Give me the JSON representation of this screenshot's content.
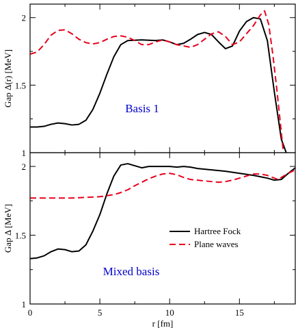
{
  "chart_data": [
    {
      "type": "line",
      "xlim": [
        0,
        19
      ],
      "ylim": [
        1,
        2.1
      ],
      "yticks": [
        "1",
        "1.5",
        "2"
      ],
      "ytick_values": [
        1,
        1.5,
        2
      ],
      "ylabel": "Gap Δ(r) [MeV]",
      "annotation": {
        "text": "Basis 1",
        "color": "#0000cc"
      },
      "series": [
        {
          "name": "Hartree Fock",
          "color": "#000000",
          "dash": "solid",
          "points": [
            [
              0,
              1.19
            ],
            [
              0.5,
              1.19
            ],
            [
              1,
              1.195
            ],
            [
              1.5,
              1.21
            ],
            [
              2,
              1.22
            ],
            [
              2.5,
              1.215
            ],
            [
              3,
              1.205
            ],
            [
              3.5,
              1.21
            ],
            [
              4,
              1.24
            ],
            [
              4.5,
              1.32
            ],
            [
              5,
              1.44
            ],
            [
              5.5,
              1.58
            ],
            [
              6,
              1.71
            ],
            [
              6.5,
              1.8
            ],
            [
              7,
              1.83
            ],
            [
              8,
              1.835
            ],
            [
              9,
              1.83
            ],
            [
              9.5,
              1.835
            ],
            [
              10,
              1.82
            ],
            [
              10.5,
              1.8
            ],
            [
              11,
              1.81
            ],
            [
              11.5,
              1.84
            ],
            [
              12,
              1.875
            ],
            [
              12.5,
              1.89
            ],
            [
              13,
              1.875
            ],
            [
              13.5,
              1.82
            ],
            [
              14,
              1.77
            ],
            [
              14.5,
              1.79
            ],
            [
              15,
              1.9
            ],
            [
              15.5,
              1.97
            ],
            [
              16,
              2.0
            ],
            [
              16.5,
              1.99
            ],
            [
              17,
              1.83
            ],
            [
              17.5,
              1.45
            ],
            [
              18,
              1.1
            ],
            [
              18.35,
              1.0
            ]
          ]
        },
        {
          "name": "Plane waves",
          "color": "#e8001c",
          "dash": "dashed",
          "points": [
            [
              0,
              1.73
            ],
            [
              0.5,
              1.745
            ],
            [
              1,
              1.8
            ],
            [
              1.5,
              1.87
            ],
            [
              2,
              1.905
            ],
            [
              2.5,
              1.91
            ],
            [
              3,
              1.88
            ],
            [
              3.5,
              1.84
            ],
            [
              4,
              1.815
            ],
            [
              4.5,
              1.805
            ],
            [
              5,
              1.815
            ],
            [
              5.5,
              1.84
            ],
            [
              6,
              1.86
            ],
            [
              6.5,
              1.865
            ],
            [
              7,
              1.855
            ],
            [
              7.5,
              1.83
            ],
            [
              8,
              1.8
            ],
            [
              8.5,
              1.8
            ],
            [
              9,
              1.82
            ],
            [
              9.5,
              1.835
            ],
            [
              10,
              1.82
            ],
            [
              10.5,
              1.8
            ],
            [
              11,
              1.79
            ],
            [
              11.5,
              1.78
            ],
            [
              12,
              1.8
            ],
            [
              12.5,
              1.84
            ],
            [
              13,
              1.88
            ],
            [
              13.5,
              1.895
            ],
            [
              14,
              1.86
            ],
            [
              14.5,
              1.8
            ],
            [
              15,
              1.82
            ],
            [
              15.5,
              1.88
            ],
            [
              16,
              1.94
            ],
            [
              16.5,
              2.02
            ],
            [
              16.8,
              2.05
            ],
            [
              17.1,
              1.95
            ],
            [
              17.4,
              1.72
            ],
            [
              17.7,
              1.45
            ],
            [
              18,
              1.15
            ],
            [
              18.15,
              1.0
            ]
          ]
        }
      ]
    },
    {
      "type": "line",
      "xlim": [
        0,
        19
      ],
      "ylim": [
        1,
        2.1
      ],
      "yticks": [
        "1",
        "1.5",
        "2"
      ],
      "ytick_values": [
        1,
        1.5,
        2
      ],
      "xticks": [
        "0",
        "5",
        "10",
        "15"
      ],
      "xtick_values": [
        0,
        5,
        10,
        15
      ],
      "xlabel": "r [fm]",
      "ylabel": "Gap Δ [MeV]",
      "annotation": {
        "text": "Mixed basis",
        "color": "#0000cc"
      },
      "legend": {
        "placement": "right-middle",
        "entries": [
          "Hartree Fock",
          "Plane waves"
        ]
      },
      "series": [
        {
          "name": "Hartree Fock",
          "color": "#000000",
          "dash": "solid",
          "points": [
            [
              0,
              1.33
            ],
            [
              0.5,
              1.335
            ],
            [
              1,
              1.35
            ],
            [
              1.5,
              1.38
            ],
            [
              2,
              1.4
            ],
            [
              2.5,
              1.395
            ],
            [
              3,
              1.38
            ],
            [
              3.5,
              1.385
            ],
            [
              4,
              1.43
            ],
            [
              4.5,
              1.53
            ],
            [
              5,
              1.65
            ],
            [
              5.5,
              1.8
            ],
            [
              6,
              1.93
            ],
            [
              6.5,
              2.01
            ],
            [
              7,
              2.02
            ],
            [
              7.5,
              2.005
            ],
            [
              8,
              1.99
            ],
            [
              8.5,
              2.0
            ],
            [
              9,
              2.0
            ],
            [
              9.5,
              2.0
            ],
            [
              10,
              2.0
            ],
            [
              10.5,
              1.995
            ],
            [
              11,
              2.0
            ],
            [
              11.5,
              1.995
            ],
            [
              12,
              1.985
            ],
            [
              13,
              1.975
            ],
            [
              14,
              1.965
            ],
            [
              15,
              1.95
            ],
            [
              16,
              1.935
            ],
            [
              16.5,
              1.925
            ],
            [
              17,
              1.915
            ],
            [
              17.5,
              1.9
            ],
            [
              18,
              1.905
            ],
            [
              18.5,
              1.95
            ],
            [
              19,
              1.99
            ]
          ]
        },
        {
          "name": "Plane waves",
          "color": "#e8001c",
          "dash": "dashed",
          "points": [
            [
              0,
              1.77
            ],
            [
              1,
              1.77
            ],
            [
              2,
              1.77
            ],
            [
              3,
              1.77
            ],
            [
              4,
              1.775
            ],
            [
              5,
              1.78
            ],
            [
              6,
              1.795
            ],
            [
              6.5,
              1.81
            ],
            [
              7,
              1.83
            ],
            [
              7.5,
              1.86
            ],
            [
              8,
              1.885
            ],
            [
              8.5,
              1.91
            ],
            [
              9,
              1.93
            ],
            [
              9.5,
              1.945
            ],
            [
              10,
              1.95
            ],
            [
              10.5,
              1.94
            ],
            [
              11,
              1.92
            ],
            [
              11.5,
              1.905
            ],
            [
              12,
              1.9
            ],
            [
              12.5,
              1.895
            ],
            [
              13,
              1.89
            ],
            [
              13.5,
              1.885
            ],
            [
              14,
              1.89
            ],
            [
              14.5,
              1.9
            ],
            [
              15,
              1.915
            ],
            [
              15.5,
              1.93
            ],
            [
              16,
              1.945
            ],
            [
              16.5,
              1.945
            ],
            [
              17,
              1.935
            ],
            [
              17.5,
              1.915
            ],
            [
              17.8,
              1.905
            ],
            [
              18,
              1.92
            ],
            [
              18.5,
              1.95
            ],
            [
              19,
              1.975
            ]
          ]
        }
      ]
    }
  ]
}
